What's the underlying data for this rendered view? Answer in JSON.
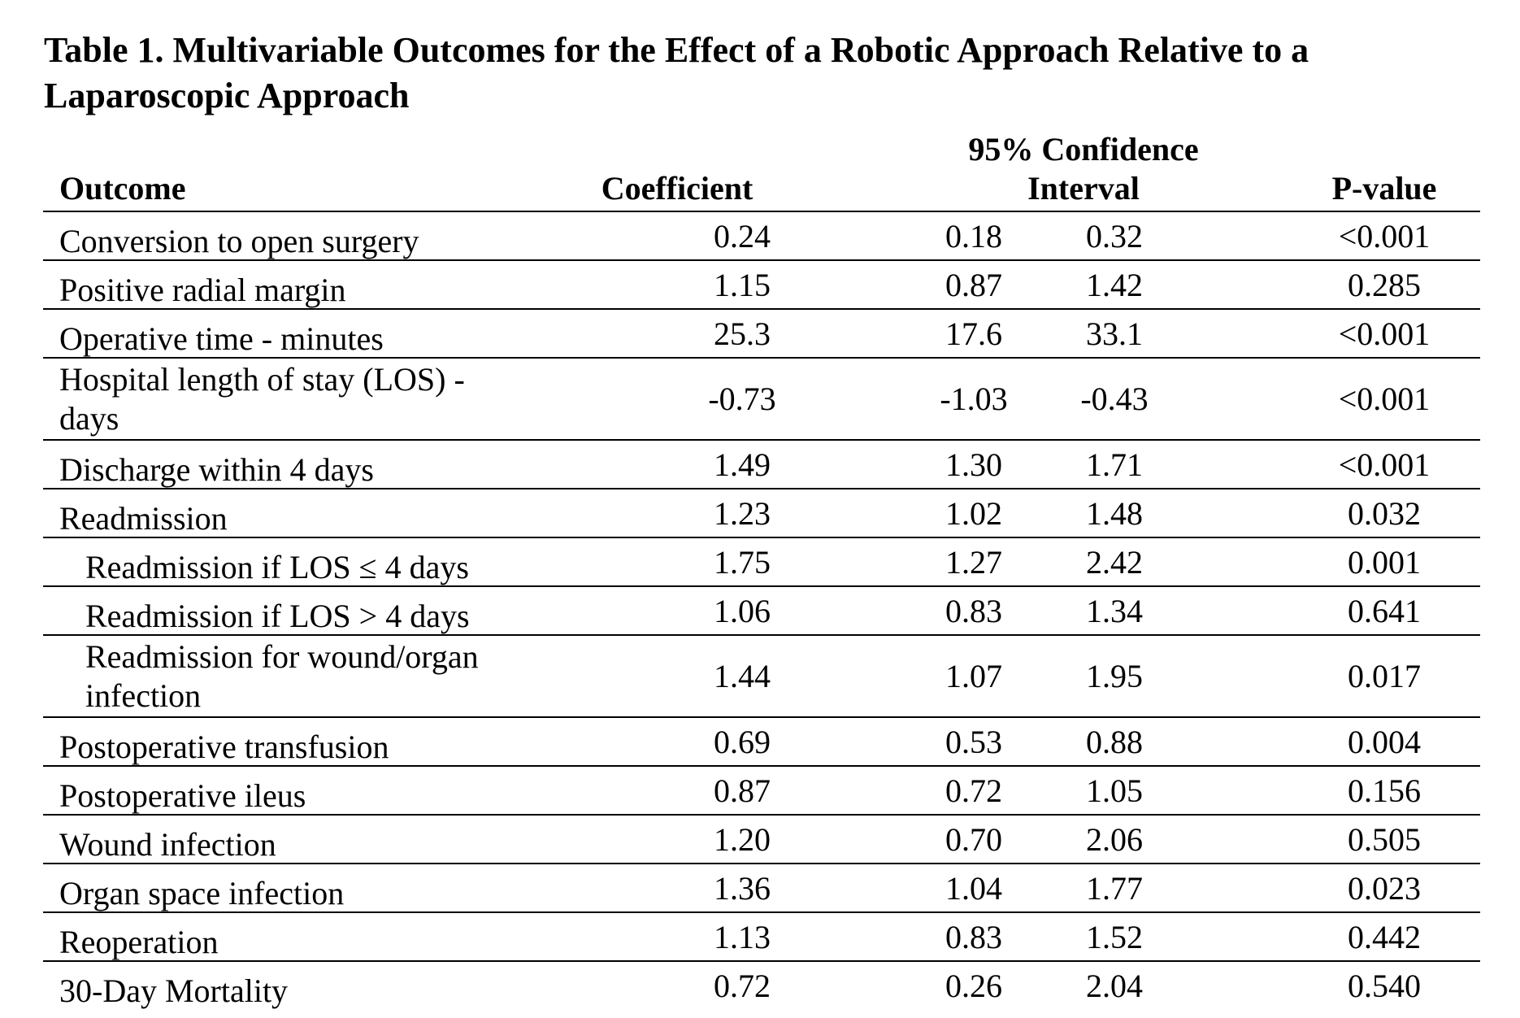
{
  "title": "Table 1. Multivariable Outcomes for the Effect of a Robotic Approach Relative to a Laparoscopic Approach",
  "headers": {
    "outcome": "Outcome",
    "coefficient": "Coefficient",
    "ci_line1": "95% Confidence",
    "ci_line2": "Interval",
    "pvalue": "P-value"
  },
  "rows": [
    {
      "outcome": "Conversion to open surgery",
      "coef": "0.24",
      "ci_low": "0.18",
      "ci_high": "0.32",
      "p": "<0.001"
    },
    {
      "outcome": "Positive radial margin",
      "coef": "1.15",
      "ci_low": "0.87",
      "ci_high": "1.42",
      "p": "0.285"
    },
    {
      "outcome": "Operative time - minutes",
      "coef": "25.3",
      "ci_low": "17.6",
      "ci_high": "33.1",
      "p": "<0.001"
    },
    {
      "outcome": "Hospital length of stay (LOS) - days",
      "coef": "-0.73",
      "ci_low": "-1.03",
      "ci_high": "-0.43",
      "p": "<0.001"
    },
    {
      "outcome": "Discharge within 4 days",
      "coef": "1.49",
      "ci_low": "1.30",
      "ci_high": "1.71",
      "p": "<0.001"
    },
    {
      "outcome": "Readmission",
      "coef": "1.23",
      "ci_low": "1.02",
      "ci_high": "1.48",
      "p": "0.032"
    },
    {
      "outcome": "Readmission if LOS ≤ 4 days",
      "coef": "1.75",
      "ci_low": "1.27",
      "ci_high": "2.42",
      "p": "0.001"
    },
    {
      "outcome": "Readmission if LOS > 4 days",
      "coef": "1.06",
      "ci_low": "0.83",
      "ci_high": "1.34",
      "p": "0.641"
    },
    {
      "outcome": "Readmission for wound/organ infection",
      "coef": "1.44",
      "ci_low": "1.07",
      "ci_high": "1.95",
      "p": "0.017"
    },
    {
      "outcome": "Postoperative transfusion",
      "coef": "0.69",
      "ci_low": "0.53",
      "ci_high": "0.88",
      "p": "0.004"
    },
    {
      "outcome": "Postoperative ileus",
      "coef": "0.87",
      "ci_low": "0.72",
      "ci_high": "1.05",
      "p": "0.156"
    },
    {
      "outcome": "Wound infection",
      "coef": "1.20",
      "ci_low": "0.70",
      "ci_high": "2.06",
      "p": "0.505"
    },
    {
      "outcome": "Organ space infection",
      "coef": "1.36",
      "ci_low": "1.04",
      "ci_high": "1.77",
      "p": "0.023"
    },
    {
      "outcome": "Reoperation",
      "coef": "1.13",
      "ci_low": "0.83",
      "ci_high": "1.52",
      "p": "0.442"
    },
    {
      "outcome": "30-Day Mortality",
      "coef": "0.72",
      "ci_low": "0.26",
      "ci_high": "2.04",
      "p": "0.540"
    }
  ]
}
